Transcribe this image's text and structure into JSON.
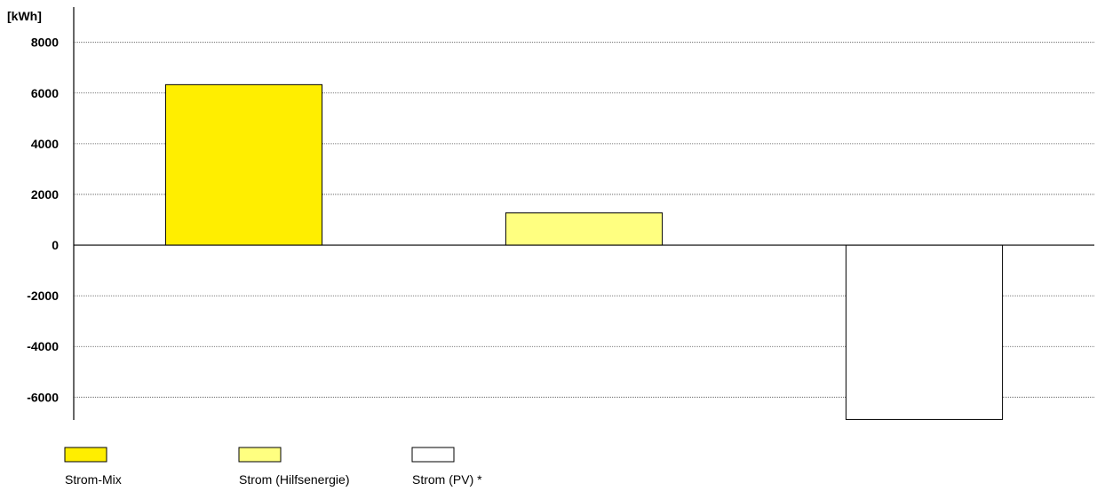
{
  "chart_data": {
    "type": "bar",
    "unit_label": "[kWh]",
    "categories": [
      "Strom-Mix",
      "Strom (Hilfsenergie)",
      "Strom (PV) *"
    ],
    "values": [
      6330,
      1270,
      -6880
    ],
    "colors": [
      "#ffee00",
      "#ffff80",
      "#ffffff"
    ],
    "ylim": [
      -6900,
      8900
    ],
    "yticks": [
      8000,
      6000,
      4000,
      2000,
      0,
      -2000,
      -4000,
      -6000
    ],
    "grid": true,
    "legend_position": "bottom-left",
    "legend": [
      {
        "label": "Strom-Mix",
        "color": "#ffee00"
      },
      {
        "label": "Strom (Hilfsenergie)",
        "color": "#ffff80"
      },
      {
        "label": "Strom (PV) *",
        "color": "#ffffff"
      }
    ]
  }
}
